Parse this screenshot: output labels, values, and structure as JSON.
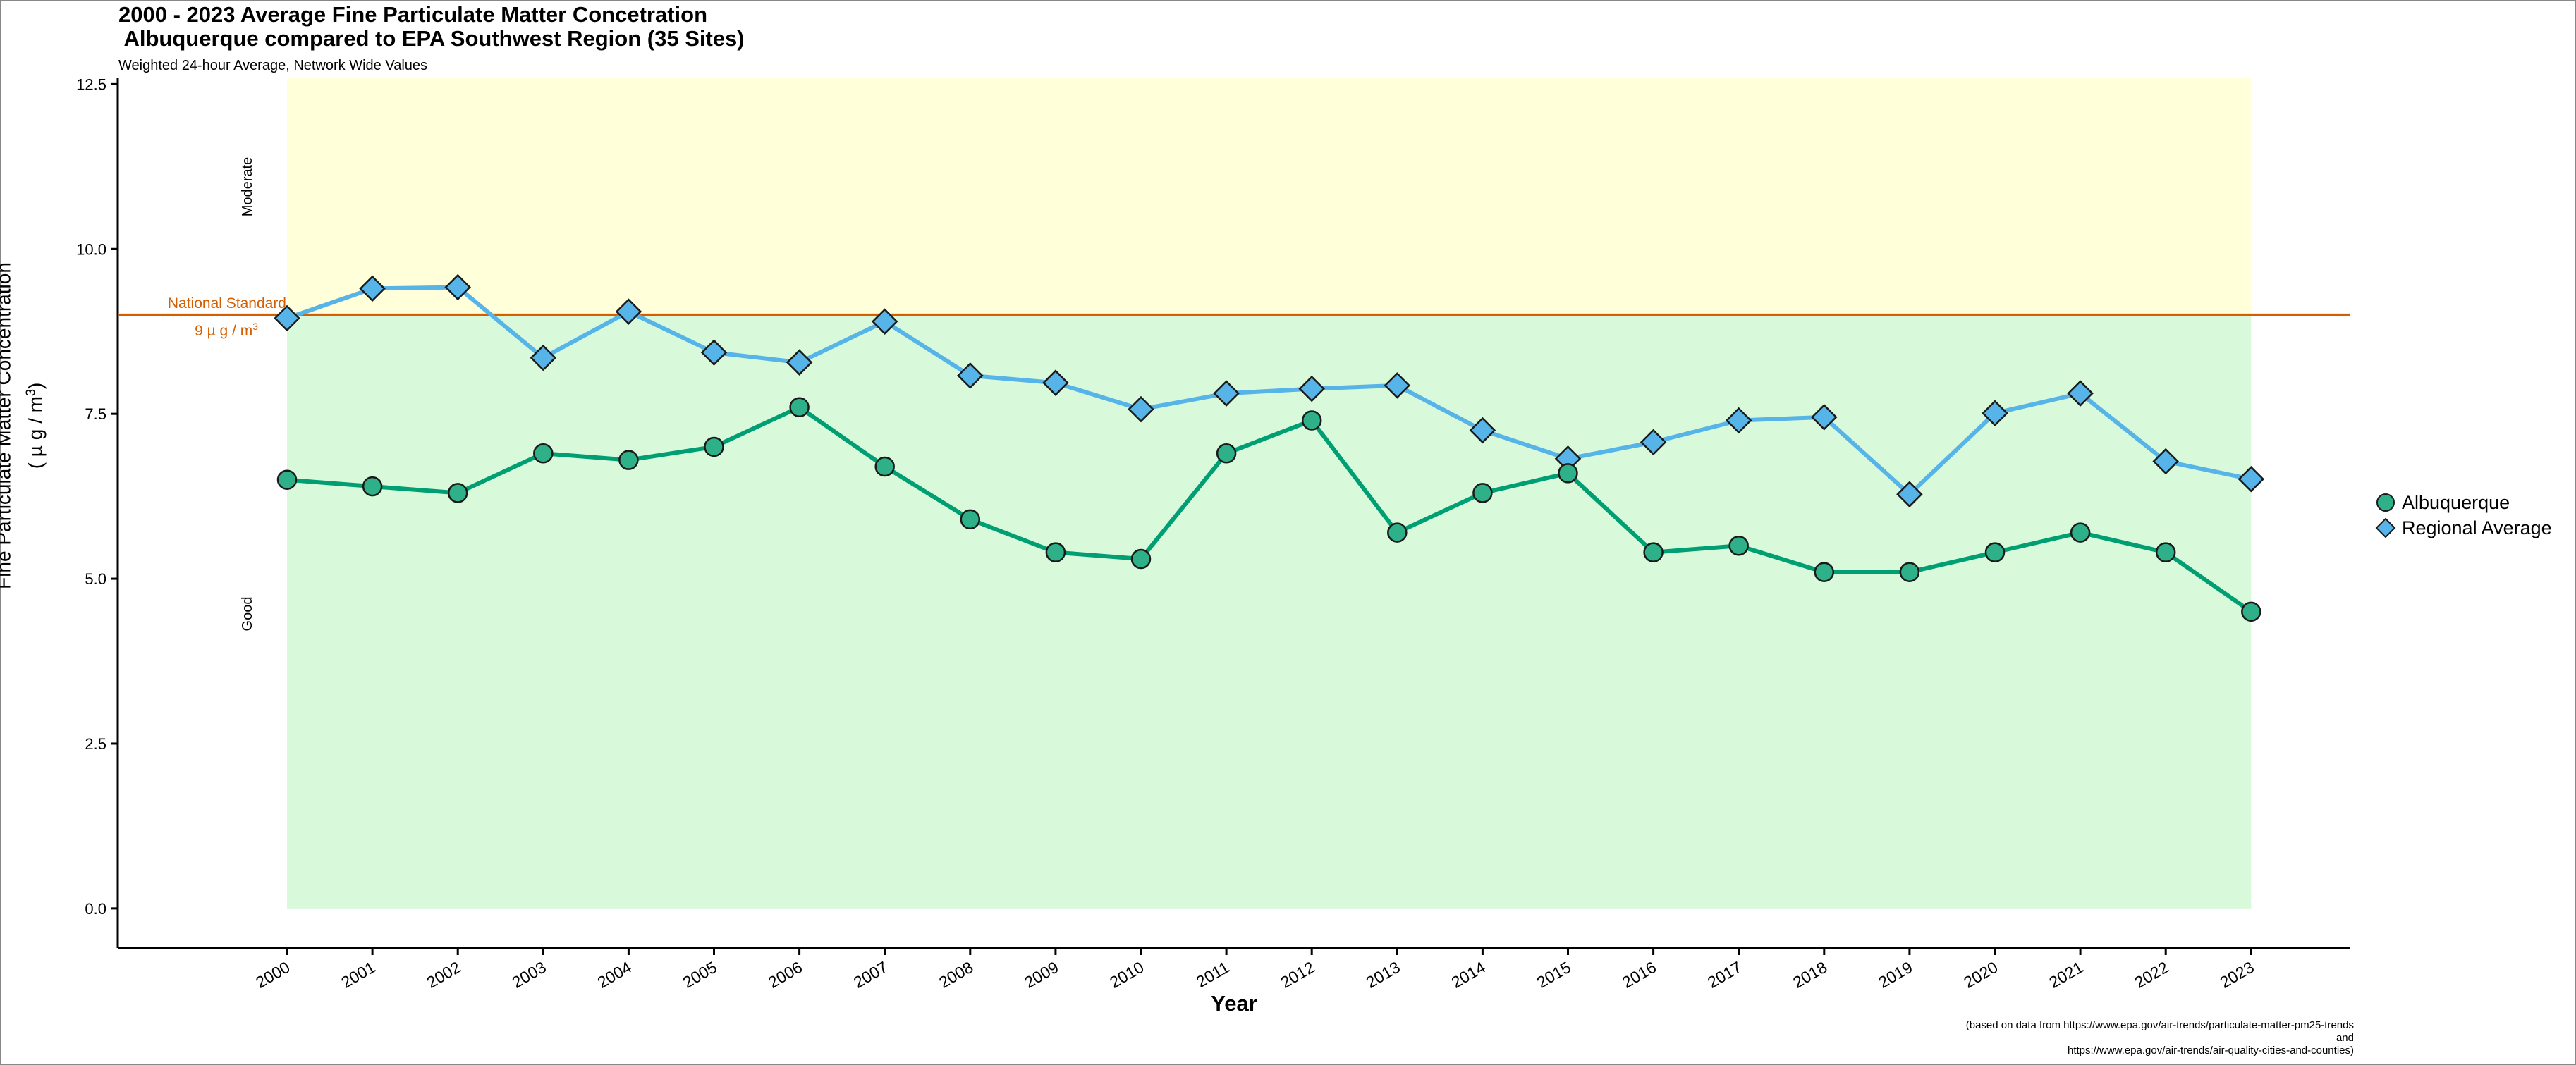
{
  "header": {
    "title": "2000 - 2023 Average Fine Particulate Matter Concetration\n Albuquerque compared to EPA Southwest Region (35 Sites)",
    "subtitle": "Weighted 24-hour Average, Network Wide Values"
  },
  "axes": {
    "ylabel_line1": "Fine Particulate Matter Concentration",
    "ylabel_line2": "( µ g / m",
    "ylabel_sup": "3",
    "ylabel_close": ")",
    "xlabel": "Year"
  },
  "annotations": {
    "standard_label": "National Standard",
    "standard_value": "9  µ g / m",
    "standard_sup": "3",
    "zone_moderate": "Moderate",
    "zone_good": "Good"
  },
  "source_note": "(based on data from https://www.epa.gov/air-trends/particulate-matter-pm25-trends\nand\nhttps://www.epa.gov/air-trends/air-quality-cities-and-counties)",
  "colors": {
    "albuquerque": "#009E73",
    "albuquerque_fill": "#2EB088",
    "regional": "#56B4E9",
    "standard_line": "#D55E00",
    "moderate_band": "#FFFFD9",
    "good_band": "#D9F9DB"
  },
  "chart_data": {
    "type": "line",
    "title": "2000 - 2023 Average Fine Particulate Matter Concetration Albuquerque compared to EPA Southwest Region (35 Sites)",
    "subtitle": "Weighted 24-hour Average, Network Wide Values",
    "xlabel": "Year",
    "ylabel": "Fine Particulate Matter Concentration ( µ g / m3)",
    "categories": [
      "2000",
      "2001",
      "2002",
      "2003",
      "2004",
      "2005",
      "2006",
      "2007",
      "2008",
      "2009",
      "2010",
      "2011",
      "2012",
      "2013",
      "2014",
      "2015",
      "2016",
      "2017",
      "2018",
      "2019",
      "2020",
      "2021",
      "2022",
      "2023"
    ],
    "series": [
      {
        "name": "Albuquerque",
        "marker": "circle",
        "values": [
          6.5,
          6.4,
          6.3,
          6.9,
          6.8,
          7.0,
          7.6,
          6.7,
          5.9,
          5.4,
          5.3,
          6.9,
          7.4,
          5.7,
          6.3,
          6.6,
          5.4,
          5.5,
          5.1,
          5.1,
          5.4,
          5.7,
          5.4,
          4.5
        ]
      },
      {
        "name": "Regional Average",
        "marker": "diamond",
        "values": [
          8.95,
          9.4,
          9.42,
          8.35,
          9.05,
          8.43,
          8.28,
          8.9,
          8.08,
          7.97,
          7.57,
          7.81,
          7.88,
          7.93,
          7.25,
          6.82,
          7.07,
          7.4,
          7.45,
          6.28,
          7.51,
          7.81,
          6.78,
          6.51
        ]
      }
    ],
    "ylim": [
      -0.6,
      12.6
    ],
    "yticks": [
      0.0,
      2.5,
      5.0,
      7.5,
      10.0,
      12.5
    ],
    "ytick_labels": [
      "0.0",
      "2.5",
      "5.0",
      "7.5",
      "10.0",
      "12.5"
    ],
    "reference_line": {
      "y": 9,
      "label": "National Standard"
    },
    "bands": [
      {
        "label": "Good",
        "from": 0,
        "to": 9
      },
      {
        "label": "Moderate",
        "from": 9,
        "to": 12.6
      }
    ],
    "legend": "right",
    "grid": false
  }
}
